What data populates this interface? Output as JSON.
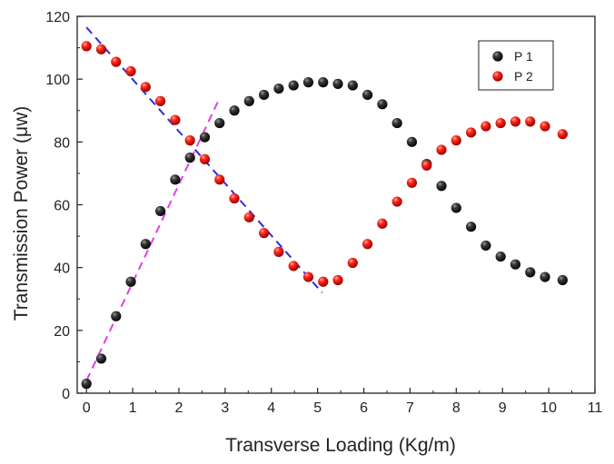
{
  "chart_data": {
    "type": "scatter",
    "title": "",
    "xlabel": "Transverse Loading (Kg/m)",
    "ylabel": "Transmission Power (μw)",
    "xlim": [
      -0.2,
      11
    ],
    "ylim": [
      0,
      120
    ],
    "xticks": [
      0,
      1,
      2,
      3,
      4,
      5,
      6,
      7,
      8,
      9,
      10,
      11
    ],
    "yticks": [
      0,
      20,
      40,
      60,
      80,
      100,
      120
    ],
    "grid": false,
    "legend_position": "top-right",
    "series": [
      {
        "name": "P 1",
        "color": "#1a1a1a",
        "marker": "sphere",
        "x": [
          0,
          0.32,
          0.64,
          0.96,
          1.28,
          1.6,
          1.92,
          2.24,
          2.56,
          2.88,
          3.2,
          3.52,
          3.84,
          4.16,
          4.48,
          4.8,
          5.12,
          5.44,
          5.76,
          6.08,
          6.4,
          6.72,
          7.04,
          7.36,
          7.68,
          8.0,
          8.32,
          8.64,
          8.96,
          9.28,
          9.6,
          9.92,
          10.3
        ],
        "y": [
          3,
          11,
          24.5,
          35.5,
          47.5,
          58,
          68,
          75,
          81.5,
          86,
          90,
          93,
          95,
          97,
          98,
          99,
          99,
          98.5,
          98,
          95,
          92,
          86,
          80,
          73,
          66,
          59,
          53,
          47,
          43.5,
          41,
          38.5,
          37,
          36
        ]
      },
      {
        "name": "P 2",
        "color": "#e02020",
        "marker": "sphere",
        "x": [
          0,
          0.32,
          0.64,
          0.96,
          1.28,
          1.6,
          1.92,
          2.24,
          2.56,
          2.88,
          3.2,
          3.52,
          3.84,
          4.16,
          4.48,
          4.8,
          5.12,
          5.44,
          5.76,
          6.08,
          6.4,
          6.72,
          7.04,
          7.36,
          7.68,
          8.0,
          8.32,
          8.64,
          8.96,
          9.28,
          9.6,
          9.92,
          10.3
        ],
        "y": [
          110.5,
          109.5,
          105.5,
          102.5,
          97.5,
          93,
          87,
          80.5,
          74.5,
          68,
          62,
          56,
          51,
          45,
          40.5,
          37,
          35.5,
          36,
          41.5,
          47.5,
          54,
          61,
          67,
          72.5,
          77.5,
          80.5,
          83,
          85,
          86,
          86.5,
          86.5,
          85,
          82.5
        ]
      }
    ],
    "fit_lines": [
      {
        "name": "",
        "color": "#2a2ae6",
        "dash": "dashed",
        "x": [
          0,
          5.1
        ],
        "y": [
          116.5,
          32
        ]
      },
      {
        "name": "",
        "color": "#e43ee4",
        "dash": "dashed",
        "x": [
          0,
          2.85
        ],
        "y": [
          4,
          93
        ]
      }
    ]
  }
}
